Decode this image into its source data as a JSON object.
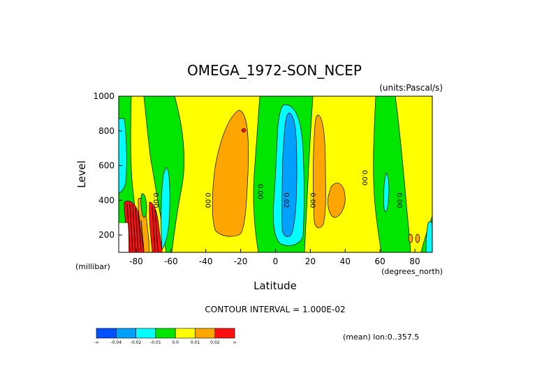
{
  "chart_data": {
    "type": "heatmap",
    "title": "OMEGA_1972-SON_NCEP",
    "units": "(units:Pascal/s)",
    "xlabel": "Latitude",
    "ylabel": "Level",
    "x_unit_label": "(degrees_north)",
    "y_unit_label": "(millibar)",
    "xlim": [
      -90,
      90
    ],
    "ylim": [
      1000,
      100
    ],
    "x_ticks": [
      "-80",
      "-60",
      "-40",
      "-20",
      "0",
      "20",
      "40",
      "60",
      "80"
    ],
    "y_ticks": [
      "200",
      "400",
      "600",
      "800",
      "1000"
    ],
    "contour_interval_text": "CONTOUR INTERVAL = 1.000E-02",
    "mean_text": "(mean) lon:0..357.5",
    "contour_labels": [
      {
        "text": "0.00",
        "lat": -70,
        "lev": 400
      },
      {
        "text": "0.00",
        "lat": -40,
        "lev": 400
      },
      {
        "text": "0.00",
        "lat": -10,
        "lev": 450
      },
      {
        "text": "0.02",
        "lat": 5,
        "lev": 400
      },
      {
        "text": "0.00",
        "lat": 20,
        "lev": 400
      },
      {
        "text": "0.00",
        "lat": 50,
        "lev": 530
      },
      {
        "text": "0.00",
        "lat": 70,
        "lev": 400
      }
    ],
    "colorbar": {
      "colors": [
        "#0050ff",
        "#00a0ff",
        "#00ffff",
        "#00e600",
        "#ffff00",
        "#ffa500",
        "#ff1010"
      ],
      "labels": [
        "-∞",
        "-0.04",
        "-0.02",
        "-0.01",
        "0.0",
        "0.01",
        "0.02",
        "∞"
      ]
    },
    "colors": {
      "green": "#00e600",
      "yellow": "#ffff00",
      "orange": "#ffa500",
      "cyan": "#00ffff",
      "lightblue": "#00a0ff",
      "red": "#ff1010"
    }
  }
}
